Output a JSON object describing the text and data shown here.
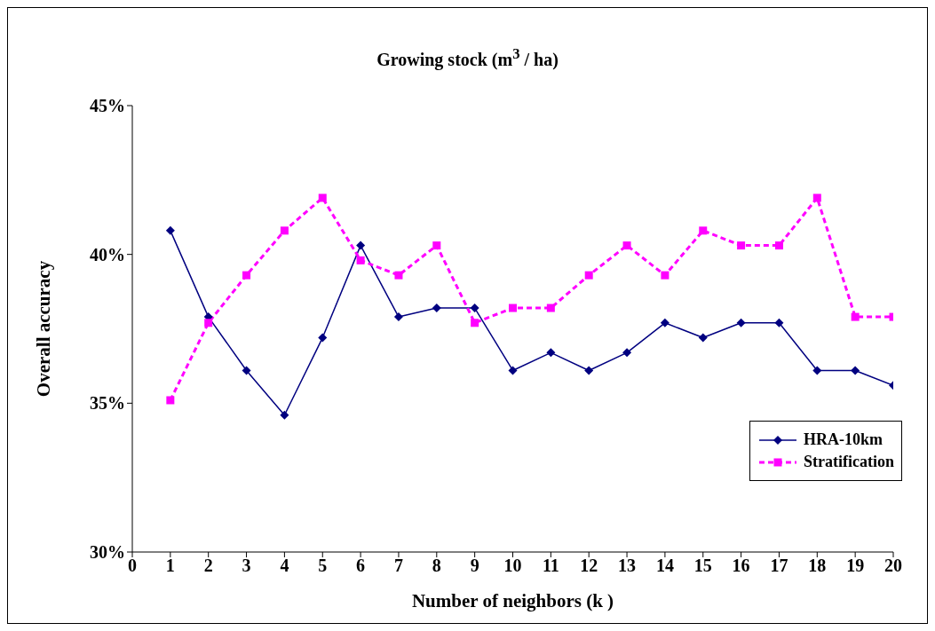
{
  "chart_data": {
    "type": "line",
    "title": "Growing stock (m$^{3}$ / ha)",
    "xlabel": "Number of neighbors (k )",
    "ylabel": "Overall accuracy",
    "x": [
      1,
      2,
      3,
      4,
      5,
      6,
      7,
      8,
      9,
      10,
      11,
      12,
      13,
      14,
      15,
      16,
      17,
      18,
      19,
      20
    ],
    "series": [
      {
        "name": "HRA-10km",
        "color": "#000080",
        "marker": "diamond",
        "line_style": "solid",
        "values": [
          40.8,
          37.9,
          36.1,
          34.6,
          37.2,
          40.3,
          37.9,
          38.2,
          38.2,
          36.1,
          36.7,
          36.1,
          36.7,
          37.7,
          37.2,
          37.7,
          37.7,
          36.1,
          36.1,
          35.6
        ]
      },
      {
        "name": "Stratification",
        "color": "#ff00ff",
        "marker": "square",
        "line_style": "dashed",
        "values": [
          35.1,
          37.7,
          39.3,
          40.8,
          41.9,
          39.8,
          39.3,
          40.3,
          37.7,
          38.2,
          38.2,
          39.3,
          40.3,
          39.3,
          40.8,
          40.3,
          40.3,
          41.9,
          37.9,
          37.9
        ]
      }
    ],
    "xlim": [
      0,
      20
    ],
    "xticks": [
      0,
      1,
      2,
      3,
      4,
      5,
      6,
      7,
      8,
      9,
      10,
      11,
      12,
      13,
      14,
      15,
      16,
      17,
      18,
      19,
      20
    ],
    "ylim": [
      30,
      45
    ],
    "yticks": [
      {
        "value": 30,
        "label": "30%"
      },
      {
        "value": 35,
        "label": "35%"
      },
      {
        "value": 40,
        "label": "40%"
      },
      {
        "value": 45,
        "label": "45%"
      }
    ],
    "grid": false,
    "legend": "bottom right"
  }
}
